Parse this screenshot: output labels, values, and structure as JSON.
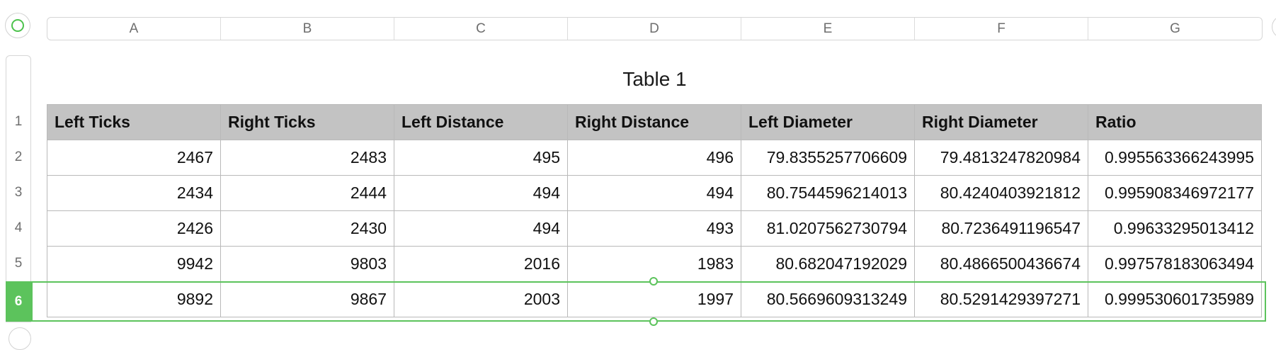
{
  "columns": [
    "A",
    "B",
    "C",
    "D",
    "E",
    "F",
    "G"
  ],
  "rows": [
    "1",
    "2",
    "3",
    "4",
    "5",
    "6"
  ],
  "selected_row": "6",
  "table": {
    "title": "Table 1",
    "headers": [
      "Left Ticks",
      "Right Ticks",
      "Left Distance",
      "Right Distance",
      "Left Diameter",
      "Right Diameter",
      "Ratio"
    ],
    "data": [
      [
        "2467",
        "2483",
        "495",
        "496",
        "79.8355257706609",
        "79.4813247820984",
        "0.995563366243995"
      ],
      [
        "2434",
        "2444",
        "494",
        "494",
        "80.7544596214013",
        "80.4240403921812",
        "0.995908346972177"
      ],
      [
        "2426",
        "2430",
        "494",
        "493",
        "81.0207562730794",
        "80.7236491196547",
        "0.99633295013412"
      ],
      [
        "9942",
        "9803",
        "2016",
        "1983",
        "80.682047192029",
        "80.4866500436674",
        "0.997578183063494"
      ],
      [
        "9892",
        "9867",
        "2003",
        "1997",
        "80.5669609313249",
        "80.5291429397271",
        "0.999530601735989"
      ]
    ]
  },
  "colors": {
    "accent": "#5cc35c",
    "header_bg": "#c3c3c3",
    "grid_line": "#b9b9b9"
  }
}
